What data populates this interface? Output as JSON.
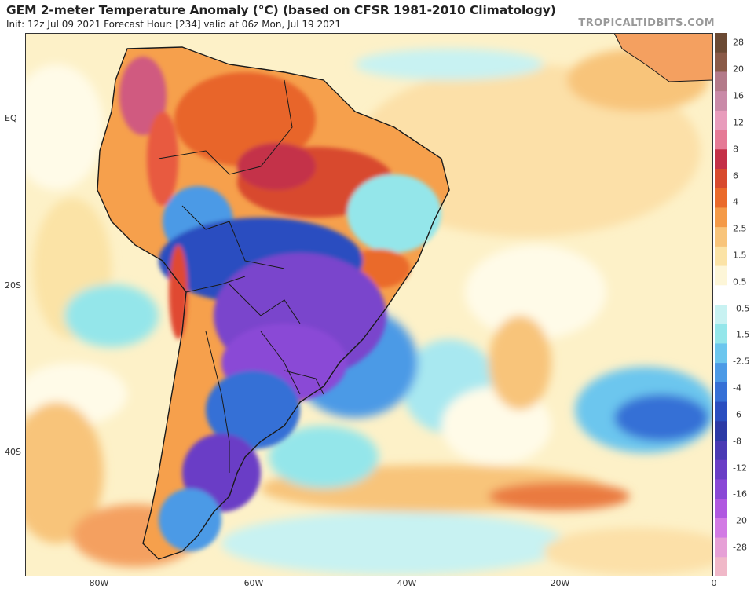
{
  "header": {
    "title": "GEM 2-meter Temperature Anomaly (°C) (based on CFSR 1981-2010 Climatology)",
    "subtitle": "Init: 12z Jul 09 2021   Forecast Hour: [234]   valid at 06z Mon, Jul 19 2021",
    "brand": "TROPICALTIDBITS.COM"
  },
  "map": {
    "lat_labels": [
      "EQ",
      "20S",
      "40S"
    ],
    "lon_labels": [
      "80W",
      "60W",
      "40W",
      "20W",
      "0"
    ],
    "colors": {
      "ocean_neutral": "#fefdf3",
      "land_outline": "#1a1a1a"
    }
  },
  "colorbar": {
    "labels": [
      "28",
      "20",
      "16",
      "12",
      "8",
      "6",
      "4",
      "2.5",
      "1.5",
      "0.5",
      "-0.5",
      "-1.5",
      "-2.5",
      "-4",
      "-6",
      "-8",
      "-12",
      "-16",
      "-20",
      "-28"
    ],
    "colors": [
      "#6b4a34",
      "#8a5a48",
      "#b37a8a",
      "#c98aa8",
      "#e89cbc",
      "#e57a96",
      "#c43048",
      "#d84a2e",
      "#ea6a2a",
      "#f49a48",
      "#f8c47a",
      "#fbe3a6",
      "#fdf6d8",
      "#ffffff",
      "#c8f2f2",
      "#94e6ea",
      "#6cc6ee",
      "#4c9ae6",
      "#3670d6",
      "#2a4ec0",
      "#2c3aa6",
      "#4a3ab4",
      "#6a3ec6",
      "#8a48d6",
      "#b058e0",
      "#d27ae4",
      "#e6a0d6",
      "#f0b8c8"
    ]
  }
}
